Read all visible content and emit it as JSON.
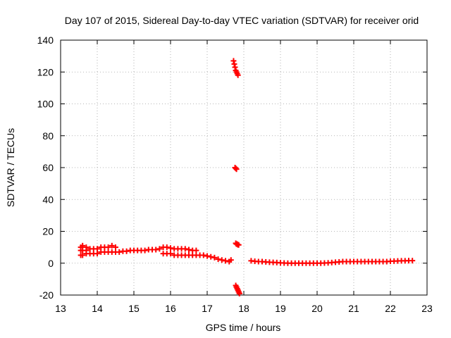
{
  "chart_data": {
    "type": "scatter",
    "title": "Day 107 of 2015, Sidereal Day-to-day VTEC variation (SDTVAR) for receiver orid",
    "xlabel": "GPS time / hours",
    "ylabel": "SDTVAR / TECUs",
    "xlim": [
      13,
      23
    ],
    "ylim": [
      -20,
      140
    ],
    "xticks": [
      13,
      14,
      15,
      16,
      17,
      18,
      19,
      20,
      21,
      22,
      23
    ],
    "yticks": [
      -20,
      0,
      20,
      40,
      60,
      80,
      100,
      120,
      140
    ],
    "grid": true,
    "marker": "plus",
    "color": "#ff0000",
    "series": [
      {
        "name": "SDTVAR",
        "x": [
          13.55,
          13.55,
          13.55,
          13.6,
          13.6,
          13.6,
          13.7,
          13.7,
          13.7,
          13.8,
          13.8,
          13.9,
          13.9,
          14.0,
          14.0,
          14.1,
          14.1,
          14.2,
          14.2,
          14.3,
          14.3,
          14.4,
          14.4,
          14.5,
          14.5,
          14.6,
          14.7,
          14.8,
          14.9,
          15.0,
          15.1,
          15.2,
          15.3,
          15.4,
          15.5,
          15.6,
          15.7,
          15.8,
          15.8,
          15.9,
          15.9,
          16.0,
          16.0,
          16.1,
          16.1,
          16.2,
          16.2,
          16.3,
          16.3,
          16.4,
          16.4,
          16.5,
          16.5,
          16.6,
          16.6,
          16.7,
          16.7,
          16.8,
          16.9,
          17.0,
          17.1,
          17.2,
          17.3,
          17.4,
          17.5,
          17.6,
          17.65,
          17.72,
          17.74,
          17.76,
          17.78,
          17.8,
          17.82,
          17.84,
          17.76,
          17.78,
          17.8,
          17.78,
          17.8,
          17.82,
          17.84,
          17.86,
          17.78,
          17.8,
          17.82,
          17.84,
          17.86,
          17.88,
          17.8,
          17.82,
          17.84,
          17.86,
          17.88,
          18.2,
          18.3,
          18.4,
          18.5,
          18.6,
          18.7,
          18.8,
          18.9,
          19.0,
          19.1,
          19.2,
          19.3,
          19.4,
          19.5,
          19.6,
          19.7,
          19.8,
          19.9,
          20.0,
          20.1,
          20.2,
          20.3,
          20.4,
          20.5,
          20.6,
          20.7,
          20.8,
          20.9,
          21.0,
          21.1,
          21.2,
          21.3,
          21.4,
          21.5,
          21.6,
          21.7,
          21.8,
          21.9,
          22.0,
          22.1,
          22.2,
          22.3,
          22.4,
          22.5,
          22.6
        ],
        "y": [
          5,
          8,
          10,
          5,
          8,
          11,
          6,
          8,
          10,
          6,
          9,
          6,
          9,
          6,
          9,
          7,
          10,
          7,
          10,
          7,
          10,
          7,
          11,
          7,
          10,
          7,
          7.5,
          7.5,
          8,
          8,
          8,
          8,
          8,
          8.5,
          8.5,
          8.5,
          9,
          6,
          10,
          6,
          10,
          6,
          9.5,
          5,
          9,
          5,
          9,
          5,
          9,
          5,
          9,
          5,
          8.5,
          5,
          8,
          5,
          8,
          5,
          5,
          4.5,
          4,
          3.5,
          2.5,
          2,
          1.5,
          1,
          2,
          127,
          125,
          123,
          121,
          120,
          119,
          118,
          60,
          59.5,
          59,
          12.5,
          12,
          12,
          11.5,
          11.5,
          -14,
          -15,
          -16,
          -17,
          -18,
          -19,
          -15,
          -16,
          -17,
          -18,
          -19,
          1.5,
          1.2,
          1,
          1,
          0.8,
          0.6,
          0.5,
          0.4,
          0.2,
          0.1,
          0,
          0,
          0,
          0,
          0,
          0,
          0,
          0,
          0,
          0,
          0.1,
          0.2,
          0.4,
          0.6,
          0.8,
          1,
          1,
          1,
          1,
          1,
          1,
          1,
          1,
          1,
          1,
          1,
          1,
          1,
          1.2,
          1.3,
          1.4,
          1.5,
          1.5,
          1.6,
          1.6
        ]
      }
    ]
  }
}
